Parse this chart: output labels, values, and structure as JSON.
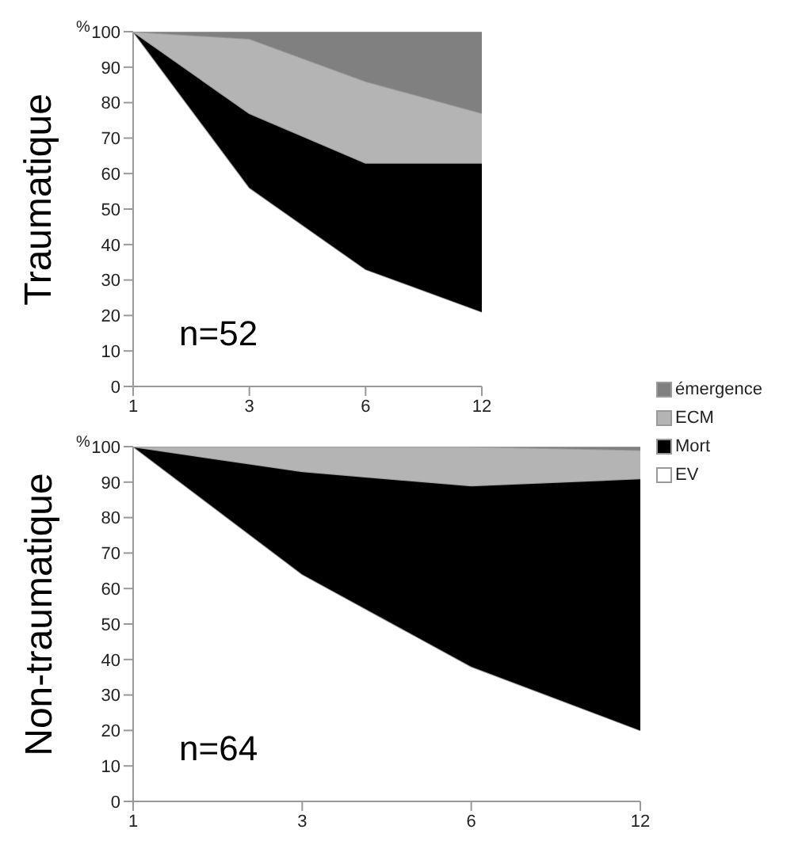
{
  "chart_data": [
    {
      "type": "area",
      "title": "Traumatique",
      "ylabel": "%",
      "stacked": true,
      "categories": [
        "1",
        "3",
        "6",
        "12"
      ],
      "ylim": [
        0,
        100
      ],
      "yticks": [
        0,
        10,
        20,
        30,
        40,
        50,
        60,
        70,
        80,
        90,
        100
      ],
      "grid": false,
      "legend": "right",
      "annotations": [
        "n=52"
      ],
      "series": [
        {
          "name": "EV",
          "color": "#ffffff",
          "values": [
            100,
            56,
            33,
            21
          ]
        },
        {
          "name": "Mort",
          "color": "#000000",
          "values": [
            0,
            21,
            30,
            42
          ]
        },
        {
          "name": "ECM",
          "color": "#b4b4b4",
          "values": [
            0,
            21,
            23,
            14
          ]
        },
        {
          "name": "émergence",
          "color": "#808080",
          "values": [
            0,
            2,
            14,
            23
          ]
        }
      ]
    },
    {
      "type": "area",
      "title": "Non-traumatique",
      "ylabel": "%",
      "stacked": true,
      "categories": [
        "1",
        "3",
        "6",
        "12"
      ],
      "ylim": [
        0,
        100
      ],
      "yticks": [
        0,
        10,
        20,
        30,
        40,
        50,
        60,
        70,
        80,
        90,
        100
      ],
      "grid": false,
      "legend": false,
      "annotations": [
        "n=64"
      ],
      "series": [
        {
          "color": "#ffffff",
          "values": [
            100,
            64,
            38,
            20
          ]
        },
        {
          "color": "#000000",
          "values": [
            0,
            29,
            51,
            71
          ]
        },
        {
          "color": "#b4b4b4",
          "values": [
            0,
            7,
            11,
            8
          ]
        },
        {
          "color": "#808080",
          "values": [
            0,
            0,
            0,
            1
          ]
        }
      ]
    }
  ]
}
